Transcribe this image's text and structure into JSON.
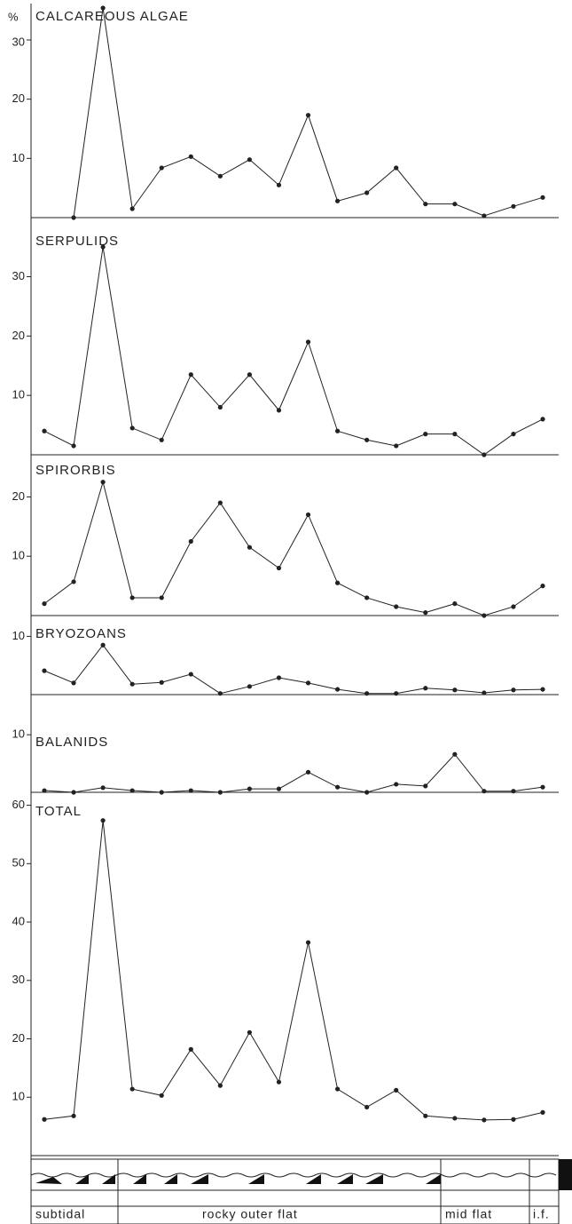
{
  "chart_data": [
    {
      "type": "line",
      "title": "CALCAREOUS  ALGAE",
      "y_label": "%",
      "categories": [
        null,
        null,
        null,
        null,
        null,
        null,
        null,
        null,
        null,
        null,
        null,
        null,
        null,
        null,
        null,
        null,
        null,
        null
      ],
      "values": [
        null,
        0,
        35.4,
        1.5,
        8.4,
        10.3,
        7,
        9.8,
        5.5,
        17.3,
        2.8,
        4.2,
        8.4,
        2.3,
        2.3,
        0.3,
        1.9,
        3.4
      ],
      "color": "#222",
      "ylim": [
        0,
        36
      ],
      "yticks": [
        10,
        20,
        30
      ]
    },
    {
      "type": "line",
      "title": "SERPULIDS",
      "categories": [
        null,
        null,
        null,
        null,
        null,
        null,
        null,
        null,
        null,
        null,
        null,
        null,
        null,
        null,
        null,
        null,
        null,
        null
      ],
      "values": [
        4,
        1.5,
        35,
        4.5,
        2.5,
        13.5,
        8,
        13.5,
        7.5,
        19,
        4,
        2.5,
        1.5,
        3.5,
        3.5,
        0,
        3.5,
        6
      ],
      "color": "#222",
      "ylim": [
        0,
        38
      ],
      "yticks": [
        10,
        20,
        30
      ]
    },
    {
      "type": "line",
      "title": "SPIRORBIS",
      "categories": [
        null,
        null,
        null,
        null,
        null,
        null,
        null,
        null,
        null,
        null,
        null,
        null,
        null,
        null,
        null,
        null,
        null,
        null
      ],
      "values": [
        2,
        5.7,
        22.5,
        3,
        3,
        12.5,
        19,
        11.5,
        8,
        17,
        5.5,
        3,
        1.5,
        0.5,
        2,
        0,
        1.5,
        5
      ],
      "color": "#222",
      "ylim": [
        0,
        26.5
      ],
      "yticks": [
        10,
        20
      ]
    },
    {
      "type": "line",
      "title": "BRYOZOANS",
      "categories": [
        null,
        null,
        null,
        null,
        null,
        null,
        null,
        null,
        null,
        null,
        null,
        null,
        null,
        null,
        null,
        null,
        null,
        null
      ],
      "values": [
        4.1,
        2,
        8.5,
        1.8,
        2.1,
        3.5,
        0.2,
        1.4,
        2.9,
        2,
        0.9,
        0.2,
        0.2,
        1.1,
        0.8,
        0.3,
        0.8,
        0.9
      ],
      "color": "#222",
      "ylim": [
        0,
        12.5
      ],
      "yticks": [
        10
      ]
    },
    {
      "type": "line",
      "title": "BALANIDS",
      "categories": [
        null,
        null,
        null,
        null,
        null,
        null,
        null,
        null,
        null,
        null,
        null,
        null,
        null,
        null,
        null,
        null,
        null,
        null
      ],
      "values": [
        0.3,
        0,
        0.8,
        0.3,
        0,
        0.3,
        0,
        0.6,
        0.6,
        3.5,
        0.9,
        0,
        1.4,
        1.1,
        6.6,
        0.2,
        0.2,
        0.9
      ],
      "color": "#222",
      "ylim": [
        0,
        10.8
      ],
      "yticks": [
        10
      ]
    },
    {
      "type": "line",
      "title": "TOTAL",
      "categories": [
        null,
        null,
        null,
        null,
        null,
        null,
        null,
        null,
        null,
        null,
        null,
        null,
        null,
        null,
        null,
        null,
        null,
        null
      ],
      "values": [
        6.2,
        6.8,
        57.4,
        11.4,
        10.3,
        18.2,
        12,
        21.1,
        12.6,
        36.5,
        11.4,
        8.3,
        11.2,
        6.8,
        6.4,
        6.1,
        6.2,
        7.4
      ],
      "color": "#222",
      "ylim": [
        0,
        61
      ],
      "yticks": [
        10,
        20,
        30,
        40,
        50,
        60
      ]
    }
  ],
  "zones": [
    "subtidal",
    "rocky  outer  flat",
    "mid  flat",
    "i.f."
  ]
}
